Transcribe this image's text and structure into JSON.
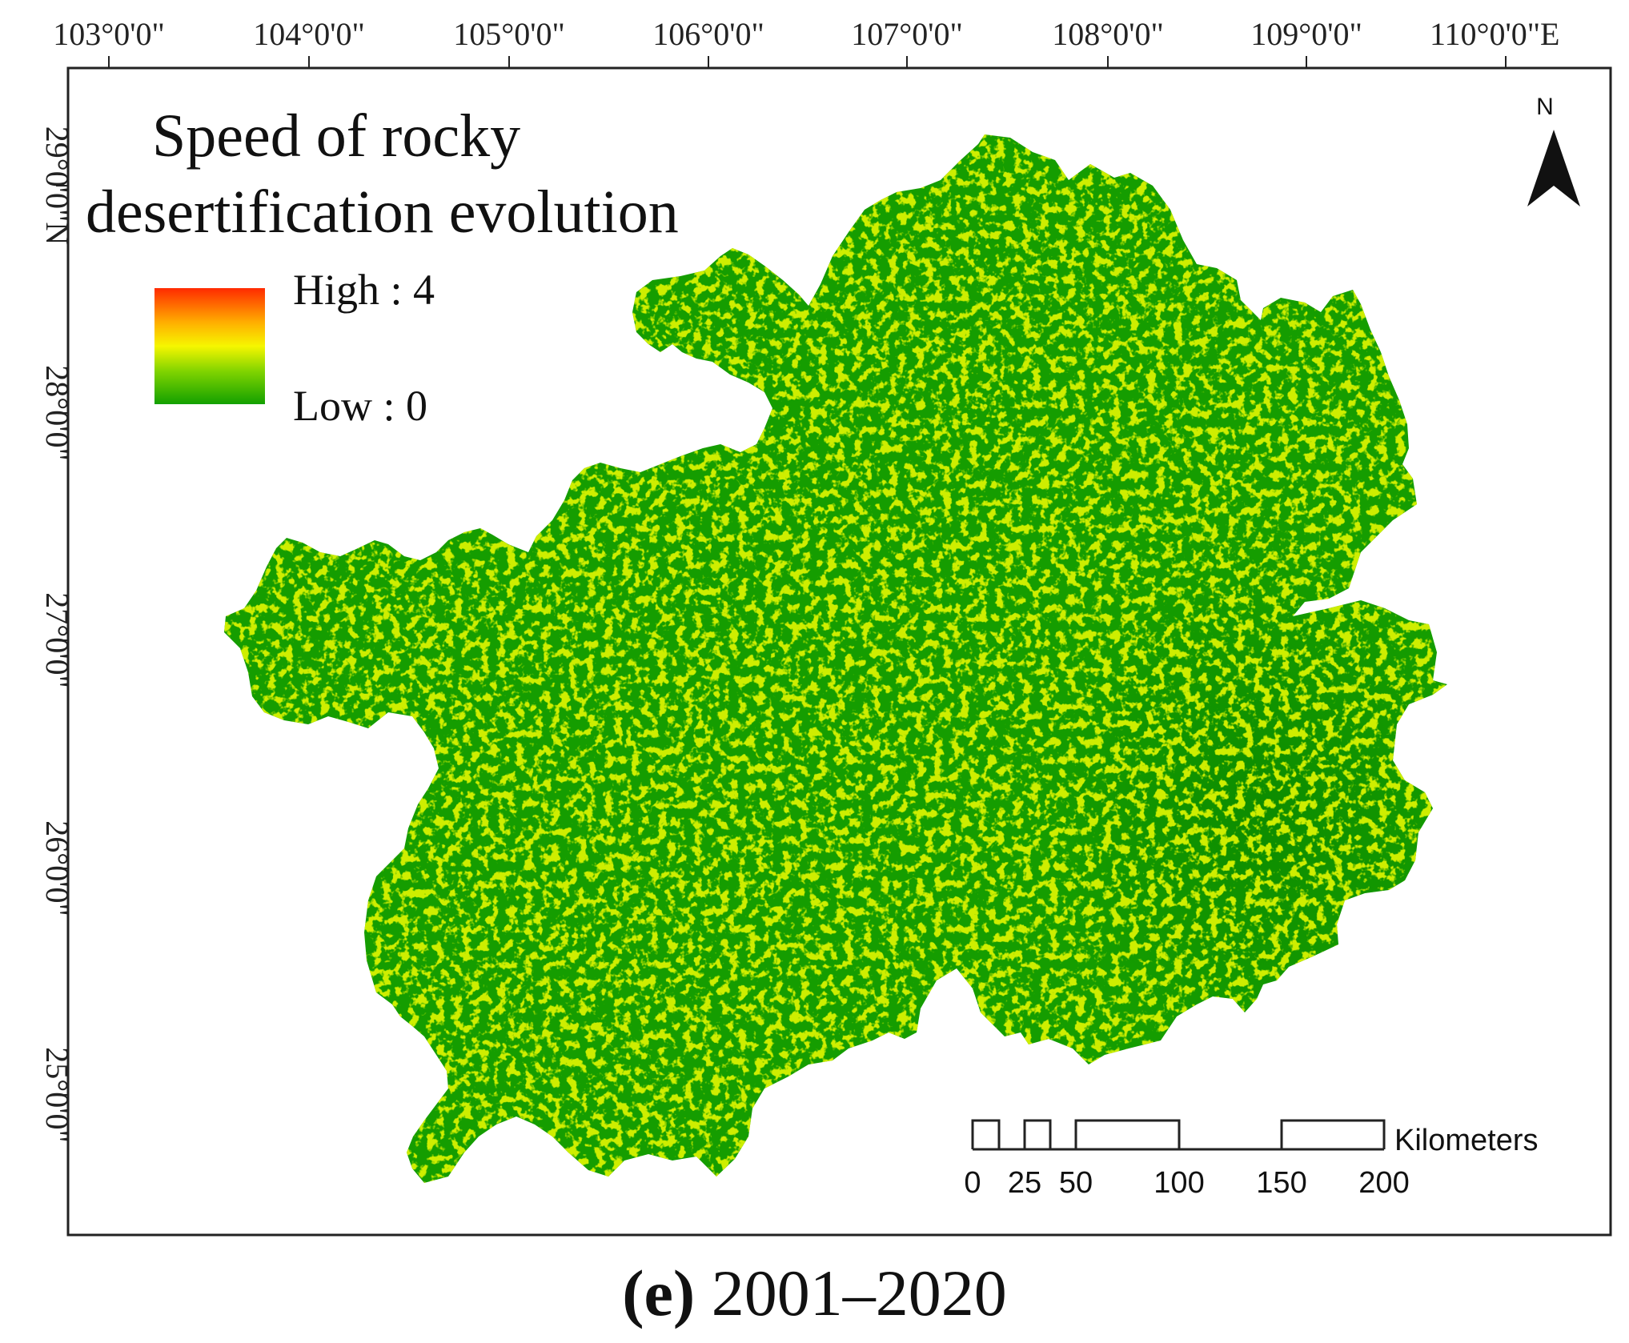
{
  "map": {
    "title_line1": "Speed of rocky",
    "title_line2": "desertification evolution",
    "legend": {
      "high_label": "High : 4",
      "low_label": "Low : 0",
      "high_value": 4,
      "low_value": 0,
      "colors": [
        "#ff2a00",
        "#ffb000",
        "#f6f600",
        "#7fd300",
        "#13a000"
      ]
    },
    "longitude_ticks": [
      "103°0'0\"",
      "104°0'0\"",
      "105°0'0\"",
      "106°0'0\"",
      "107°0'0\"",
      "108°0'0\"",
      "109°0'0\"",
      "110°0'0\"E"
    ],
    "latitude_ticks": [
      "29°0'0\"N",
      "28°0'0\"",
      "27°0'0\"",
      "26°0'0\"",
      "25°0'0\""
    ],
    "north_label": "N",
    "scale_bar": {
      "unit": "Kilometers",
      "labels": [
        "0",
        "25",
        "50",
        "100",
        "150",
        "200"
      ]
    },
    "colors": {
      "base_green": "#159d00",
      "light_green": "#9fd400",
      "dark_green": "#0e8f00",
      "frame": "#222222"
    }
  },
  "caption": {
    "letter": "(e)",
    "text": " 2001–2020"
  }
}
